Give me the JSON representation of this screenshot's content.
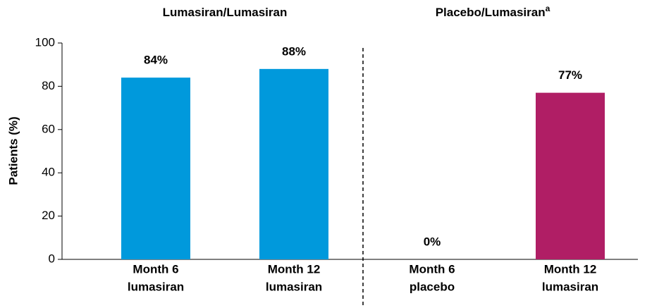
{
  "chart_data": {
    "type": "bar",
    "groups": [
      {
        "label": "Lumasiran/Lumasiran"
      },
      {
        "label": "Placebo/Lumasiran",
        "superscript": "a"
      }
    ],
    "y_axis_label": "Patients (%)",
    "categories": [
      [
        "Month 6",
        "lumasiran"
      ],
      [
        "Month 12",
        "lumasiran"
      ],
      [
        "Month 6",
        "placebo"
      ],
      [
        "Month 12",
        "lumasiran"
      ]
    ],
    "values": [
      84,
      88,
      0,
      77
    ],
    "value_labels": [
      "84%",
      "88%",
      "0%",
      "77%"
    ],
    "colors": [
      "#0099dc",
      "#0099dc",
      "#0099dc",
      "#b01e65"
    ],
    "ylim": [
      0,
      100
    ],
    "yticks": [
      0,
      20,
      40,
      60,
      80,
      100
    ],
    "grid": false
  }
}
